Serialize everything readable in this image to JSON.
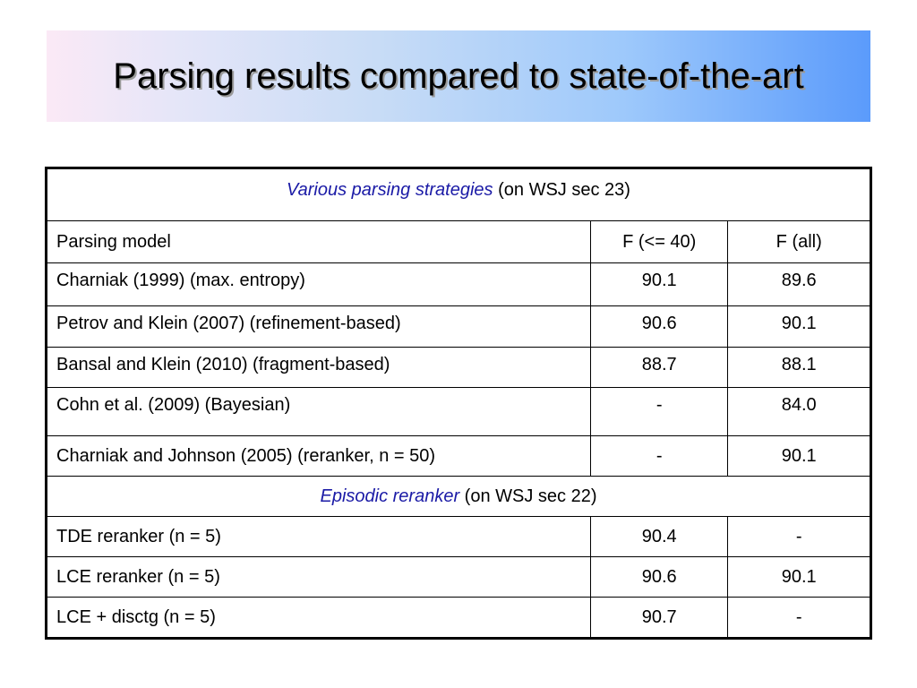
{
  "slide": {
    "title": "Parsing results compared to state-of-the-art"
  },
  "table": {
    "sections": [
      {
        "header_em": "Various parsing strategies",
        "header_rest": " (on WSJ sec 23)",
        "rows": [
          {
            "model": "Parsing model",
            "f40": "F (<= 40)",
            "fall": "F (all)"
          },
          {
            "model": "Charniak (1999) (max. entropy)",
            "f40": "90.1",
            "fall": "89.6"
          },
          {
            "model": "Petrov and Klein (2007) (refinement-based)",
            "f40": "90.6",
            "fall": "90.1"
          },
          {
            "model": "Bansal and Klein (2010) (fragment-based)",
            "f40": "88.7",
            "fall": "88.1"
          },
          {
            "model": "Cohn et al. (2009) (Bayesian)",
            "f40": "-",
            "fall": "84.0"
          },
          {
            "model": "Charniak and Johnson (2005) (reranker, n = 50)",
            "f40": "-",
            "fall": "90.1"
          }
        ]
      },
      {
        "header_em": "Episodic reranker",
        "header_rest": " (on WSJ sec 22)",
        "rows": [
          {
            "model": "TDE reranker (n = 5)",
            "f40": "90.4",
            "fall": "-"
          },
          {
            "model": "LCE reranker (n = 5)",
            "f40": "90.6",
            "fall": "90.1"
          },
          {
            "model": "LCE + disctg (n = 5)",
            "f40": "90.7",
            "fall": "-"
          }
        ]
      }
    ]
  },
  "colors": {
    "section_header_text": "#1a1aa6",
    "title_gradient_start": "#fbe9f6",
    "title_gradient_end": "#5b9bfb"
  }
}
